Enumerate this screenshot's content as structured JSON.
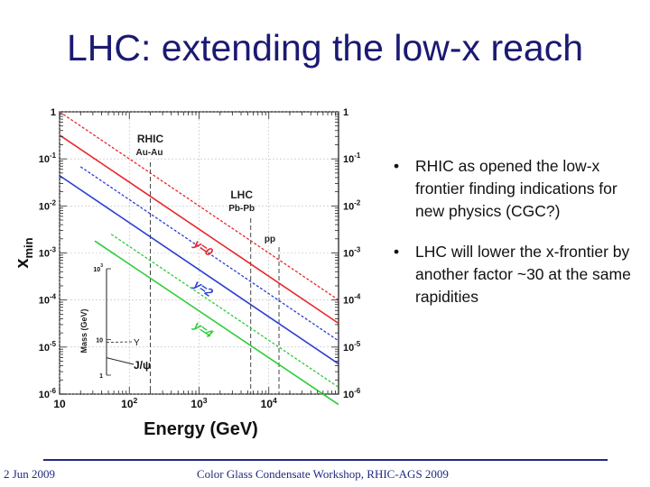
{
  "slide": {
    "title": "LHC: extending the low-x reach",
    "bullets": [
      "RHIC as opened the low-x frontier finding indications for new physics  (CGC?)",
      "LHC will lower the x-frontier by another factor ~30 at the same rapidities"
    ],
    "footer_left": "2 Jun 2009",
    "footer_center": "Color Glass Condensate Workshop, RHIC-AGS 2009"
  },
  "chart_data": {
    "type": "line",
    "xlabel": "Energy (GeV)",
    "ylabel": "x",
    "ylabel_sub": "min",
    "xscale": "log",
    "yscale": "log",
    "xlim": [
      10,
      100000
    ],
    "ylim": [
      1e-06,
      1
    ],
    "xticks": [
      {
        "value": 10,
        "base": "10",
        "exp": ""
      },
      {
        "value": 100,
        "base": "10",
        "exp": "2"
      },
      {
        "value": 1000,
        "base": "10",
        "exp": "3"
      },
      {
        "value": 10000,
        "base": "10",
        "exp": "4"
      }
    ],
    "yticks": [
      {
        "value": 1,
        "base": "1",
        "exp": ""
      },
      {
        "value": 0.1,
        "base": "10",
        "exp": "-1"
      },
      {
        "value": 0.01,
        "base": "10",
        "exp": "-2"
      },
      {
        "value": 0.001,
        "base": "10",
        "exp": "-3"
      },
      {
        "value": 0.0001,
        "base": "10",
        "exp": "-4"
      },
      {
        "value": 1e-05,
        "base": "10",
        "exp": "-5"
      },
      {
        "value": 1e-06,
        "base": "10",
        "exp": "-6"
      }
    ],
    "series": [
      {
        "label": "y=0",
        "color": "#e8272b",
        "solid": [
          [
            10,
            0.32
          ],
          [
            100000,
            3.2e-05
          ]
        ],
        "dashed": [
          [
            10,
            1.0
          ],
          [
            100000,
            0.0001
          ]
        ]
      },
      {
        "label": "y=2",
        "color": "#2b3fd0",
        "solid": [
          [
            10,
            0.044
          ],
          [
            100000,
            4.4e-06
          ]
        ],
        "dashed": [
          [
            20,
            0.068
          ],
          [
            100000,
            1.36e-05
          ]
        ]
      },
      {
        "label": "y=4",
        "color": "#2ecc38",
        "solid": [
          [
            32,
            0.0018
          ],
          [
            100000,
            6e-07
          ]
        ],
        "dashed": [
          [
            55,
            0.0025
          ],
          [
            100000,
            1.4e-06
          ]
        ]
      }
    ],
    "vlines": [
      {
        "label": "RHIC",
        "sublabel": "Au-Au",
        "x": 200
      },
      {
        "label": "LHC",
        "sublabel": "Pb-Pb",
        "x": 5500
      },
      {
        "sublabel": "pp",
        "x": 14000
      }
    ],
    "inset": {
      "ylabel": "Mass (GeV)",
      "ticks": [
        {
          "value": 1000,
          "base": "10",
          "exp": "3"
        },
        {
          "value": 10,
          "base": "10",
          "exp": ""
        },
        {
          "value": 1,
          "base": "1",
          "exp": ""
        }
      ],
      "markers": [
        {
          "label": "J/ψ",
          "value": 3.1
        },
        {
          "label": "Υ",
          "value": 9.5
        }
      ]
    },
    "grid": true
  }
}
